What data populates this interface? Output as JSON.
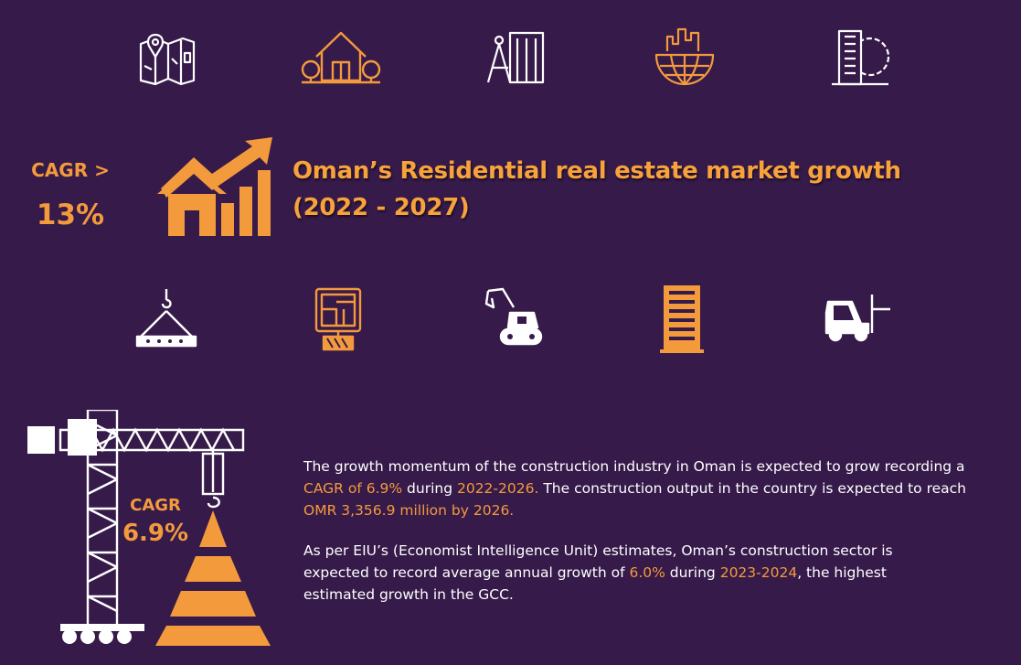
{
  "colors": {
    "background": "#361a4a",
    "accent": "#f39a3c",
    "text": "#ffffff"
  },
  "icons_top": [
    "map-pin-icon",
    "house-icon",
    "architect-compass-icon",
    "globe-city-icon",
    "building-gear-icon"
  ],
  "icons_mid": [
    "crane-hook-load-icon",
    "blueprint-board-icon",
    "excavator-icon",
    "tower-building-icon",
    "forklift-icon"
  ],
  "headline": {
    "cagr_label": "CAGR >",
    "cagr_value": "13%",
    "title_line1": "Oman’s Residential real estate market growth",
    "title_line2": "(2022 - 2027)"
  },
  "crane_block": {
    "cagr_label": "CAGR",
    "cagr_value": "6.9%"
  },
  "paragraph1": {
    "p1": "The growth momentum of the construction industry in Oman is expected to grow recording a ",
    "h1": "CAGR of 6.9%",
    "p2": " during ",
    "h2": "2022-2026.",
    "p3": " The construction output in the country is expected to reach ",
    "h3": "OMR 3,356.9 million by 2026."
  },
  "paragraph2": {
    "p1": "As per EIU’s (Economist Intelligence Unit) estimates, Oman’s construction sector is expected to record average annual growth of ",
    "h1": "6.0%",
    "p2": " during ",
    "h2": "2023-2024",
    "p3": ", the highest estimated growth in the GCC."
  }
}
